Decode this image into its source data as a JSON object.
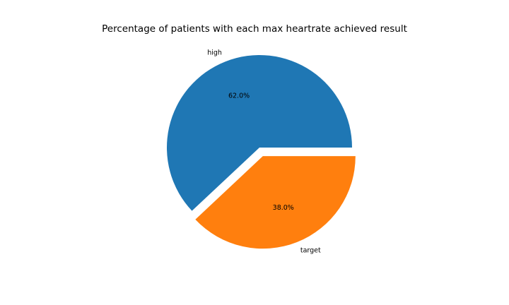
{
  "chart_data": {
    "type": "pie",
    "title": "Percentage of patients with each max heartrate achieved result",
    "categories": [
      "high",
      "target"
    ],
    "values": [
      62.0,
      38.0
    ],
    "percent_labels": [
      "62.0%",
      "38.0%"
    ],
    "colors": [
      "#1f77b4",
      "#ff7f0e"
    ],
    "explode": [
      0,
      0.1
    ],
    "start_angle_deg": 0,
    "direction": "counterclockwise",
    "legend": "none",
    "grid": false
  }
}
